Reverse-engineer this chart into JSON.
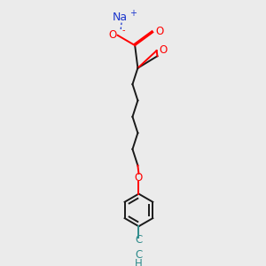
{
  "background_color": "#ebebeb",
  "bond_color": "#1a1a1a",
  "oxygen_color": "#ff0000",
  "sodium_color": "#1a35cc",
  "alkyne_color": "#2e8b8b",
  "na_text": "Na",
  "na_charge": "+",
  "o_label": "O",
  "minus_label": "-",
  "c_label": "C",
  "h_label": "H",
  "fig_width": 3.0,
  "fig_height": 3.0,
  "dpi": 100
}
